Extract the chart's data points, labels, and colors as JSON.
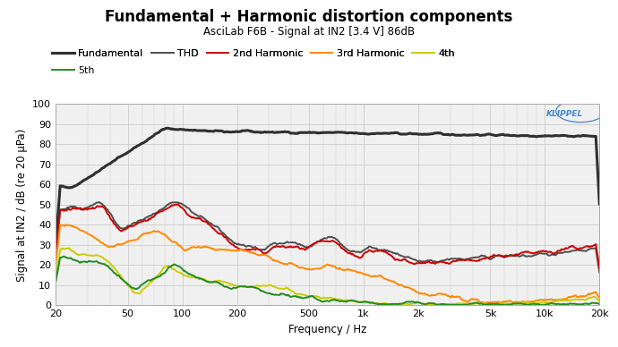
{
  "title": "Fundamental + Harmonic distortion components",
  "subtitle": "AsciLab F6B - Signal at IN2 [3.4 V] 86dB",
  "xlabel": "Frequency / Hz",
  "ylabel": "Signal at IN2 / dB (re 20 µPa)",
  "xlim": [
    20,
    20000
  ],
  "ylim": [
    0,
    100
  ],
  "yticks": [
    0,
    10,
    20,
    30,
    40,
    50,
    60,
    70,
    80,
    90,
    100
  ],
  "xtick_labels": [
    "20",
    "50",
    "100",
    "200",
    "500",
    "1k",
    "2k",
    "5k",
    "10k",
    "20k"
  ],
  "xtick_vals": [
    20,
    50,
    100,
    200,
    500,
    1000,
    2000,
    5000,
    10000,
    20000
  ],
  "legend_entries": [
    "Fundamental",
    "THD",
    "2nd Harmonic",
    "3rd Harmonic",
    "4th",
    "5th"
  ],
  "legend_ncol_row1": 5,
  "line_colors": {
    "Fundamental": "#303030",
    "THD": "#505050",
    "2nd Harmonic": "#cc0000",
    "3rd Harmonic": "#ff8800",
    "4th": "#cccc00",
    "5th": "#228b22"
  },
  "line_widths": {
    "Fundamental": 2.2,
    "THD": 1.4,
    "2nd Harmonic": 1.4,
    "3rd Harmonic": 1.4,
    "4th": 1.4,
    "5th": 1.4
  },
  "background_color": "#f0f0f0",
  "grid_color": "#cccccc",
  "klippel_color": "#4488cc",
  "title_fontsize": 12,
  "subtitle_fontsize": 8.5,
  "label_fontsize": 8.5,
  "tick_fontsize": 8,
  "legend_fontsize": 8
}
